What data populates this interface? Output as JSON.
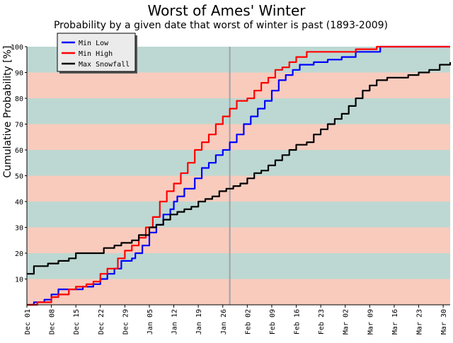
{
  "chart_data": {
    "type": "line",
    "title": "Worst of Ames' Winter",
    "subtitle": "Probability by a given date that worst of winter is past (1893-2009)",
    "xlabel": "",
    "ylabel": "Cumulative Probability [%]",
    "x_start": "Dec 01",
    "x_end": "Mar 31",
    "x_range_days": [
      0,
      121
    ],
    "ylim": [
      0,
      100
    ],
    "y_ticks": [
      10,
      20,
      30,
      40,
      50,
      60,
      70,
      80,
      90,
      100
    ],
    "x_tick_days": [
      0,
      7,
      14,
      21,
      28,
      35,
      42,
      49,
      56,
      63,
      70,
      77,
      84,
      91,
      98,
      105,
      112,
      119
    ],
    "x_tick_labels": [
      "Dec 01",
      "Dec 08",
      "Dec 15",
      "Dec 22",
      "Dec 29",
      "Jan 05",
      "Jan 12",
      "Jan 19",
      "Jan 26",
      "Feb 02",
      "Feb 09",
      "Feb 16",
      "Feb 23",
      "Mar 02",
      "Mar 09",
      "Mar 16",
      "Mar 23",
      "Mar 30"
    ],
    "background_bands": [
      "#bdd8d2",
      "#f8cbbd"
    ],
    "marker_day": 58,
    "legend_position": "top-left",
    "grid": false,
    "series": [
      {
        "name": "Min Low",
        "color": "#0000ff",
        "points": [
          [
            0,
            0
          ],
          [
            2,
            1
          ],
          [
            5,
            2
          ],
          [
            7,
            4
          ],
          [
            9,
            6
          ],
          [
            12,
            6
          ],
          [
            16,
            7
          ],
          [
            19,
            8
          ],
          [
            21,
            10
          ],
          [
            23,
            12
          ],
          [
            25,
            14
          ],
          [
            27,
            17
          ],
          [
            30,
            18
          ],
          [
            31,
            20
          ],
          [
            33,
            23
          ],
          [
            35,
            28
          ],
          [
            37,
            31
          ],
          [
            39,
            35
          ],
          [
            41,
            37
          ],
          [
            42,
            40
          ],
          [
            43,
            42
          ],
          [
            45,
            45
          ],
          [
            48,
            49
          ],
          [
            50,
            53
          ],
          [
            52,
            55
          ],
          [
            54,
            58
          ],
          [
            56,
            60
          ],
          [
            58,
            63
          ],
          [
            60,
            66
          ],
          [
            62,
            70
          ],
          [
            64,
            73
          ],
          [
            66,
            76
          ],
          [
            68,
            79
          ],
          [
            70,
            83
          ],
          [
            72,
            87
          ],
          [
            74,
            89
          ],
          [
            76,
            91
          ],
          [
            78,
            93
          ],
          [
            82,
            94
          ],
          [
            86,
            95
          ],
          [
            90,
            96
          ],
          [
            94,
            98
          ],
          [
            101,
            100
          ],
          [
            121,
            100
          ]
        ]
      },
      {
        "name": "Min High",
        "color": "#ff0000",
        "points": [
          [
            0,
            0
          ],
          [
            3,
            1
          ],
          [
            5,
            1
          ],
          [
            7,
            3
          ],
          [
            9,
            4
          ],
          [
            12,
            6
          ],
          [
            14,
            7
          ],
          [
            17,
            8
          ],
          [
            19,
            9
          ],
          [
            21,
            12
          ],
          [
            23,
            14
          ],
          [
            26,
            18
          ],
          [
            28,
            21
          ],
          [
            30,
            23
          ],
          [
            32,
            26
          ],
          [
            34,
            30
          ],
          [
            36,
            34
          ],
          [
            38,
            40
          ],
          [
            40,
            44
          ],
          [
            42,
            47
          ],
          [
            44,
            51
          ],
          [
            46,
            55
          ],
          [
            48,
            60
          ],
          [
            50,
            63
          ],
          [
            52,
            66
          ],
          [
            54,
            70
          ],
          [
            56,
            73
          ],
          [
            58,
            76
          ],
          [
            60,
            79
          ],
          [
            63,
            80
          ],
          [
            65,
            83
          ],
          [
            67,
            86
          ],
          [
            69,
            88
          ],
          [
            71,
            91
          ],
          [
            73,
            92
          ],
          [
            75,
            94
          ],
          [
            77,
            96
          ],
          [
            80,
            98
          ],
          [
            85,
            98
          ],
          [
            90,
            98
          ],
          [
            94,
            99
          ],
          [
            100,
            100
          ],
          [
            121,
            100
          ]
        ]
      },
      {
        "name": "Max Snowfall",
        "color": "#000000",
        "points": [
          [
            0,
            12
          ],
          [
            2,
            15
          ],
          [
            4,
            15
          ],
          [
            6,
            16
          ],
          [
            9,
            17
          ],
          [
            12,
            18
          ],
          [
            14,
            20
          ],
          [
            17,
            20
          ],
          [
            19,
            20
          ],
          [
            22,
            22
          ],
          [
            25,
            23
          ],
          [
            27,
            24
          ],
          [
            30,
            25
          ],
          [
            32,
            27
          ],
          [
            35,
            30
          ],
          [
            37,
            31
          ],
          [
            39,
            33
          ],
          [
            41,
            35
          ],
          [
            43,
            36
          ],
          [
            45,
            37
          ],
          [
            47,
            38
          ],
          [
            49,
            40
          ],
          [
            51,
            41
          ],
          [
            53,
            42
          ],
          [
            55,
            44
          ],
          [
            57,
            45
          ],
          [
            59,
            46
          ],
          [
            61,
            47
          ],
          [
            63,
            49
          ],
          [
            65,
            51
          ],
          [
            67,
            52
          ],
          [
            69,
            54
          ],
          [
            71,
            56
          ],
          [
            73,
            58
          ],
          [
            75,
            60
          ],
          [
            77,
            62
          ],
          [
            80,
            63
          ],
          [
            82,
            66
          ],
          [
            84,
            68
          ],
          [
            86,
            70
          ],
          [
            88,
            72
          ],
          [
            90,
            74
          ],
          [
            92,
            77
          ],
          [
            94,
            80
          ],
          [
            96,
            83
          ],
          [
            98,
            85
          ],
          [
            100,
            87
          ],
          [
            103,
            88
          ],
          [
            106,
            88
          ],
          [
            109,
            89
          ],
          [
            112,
            90
          ],
          [
            115,
            91
          ],
          [
            118,
            93
          ],
          [
            121,
            94
          ]
        ]
      }
    ]
  }
}
